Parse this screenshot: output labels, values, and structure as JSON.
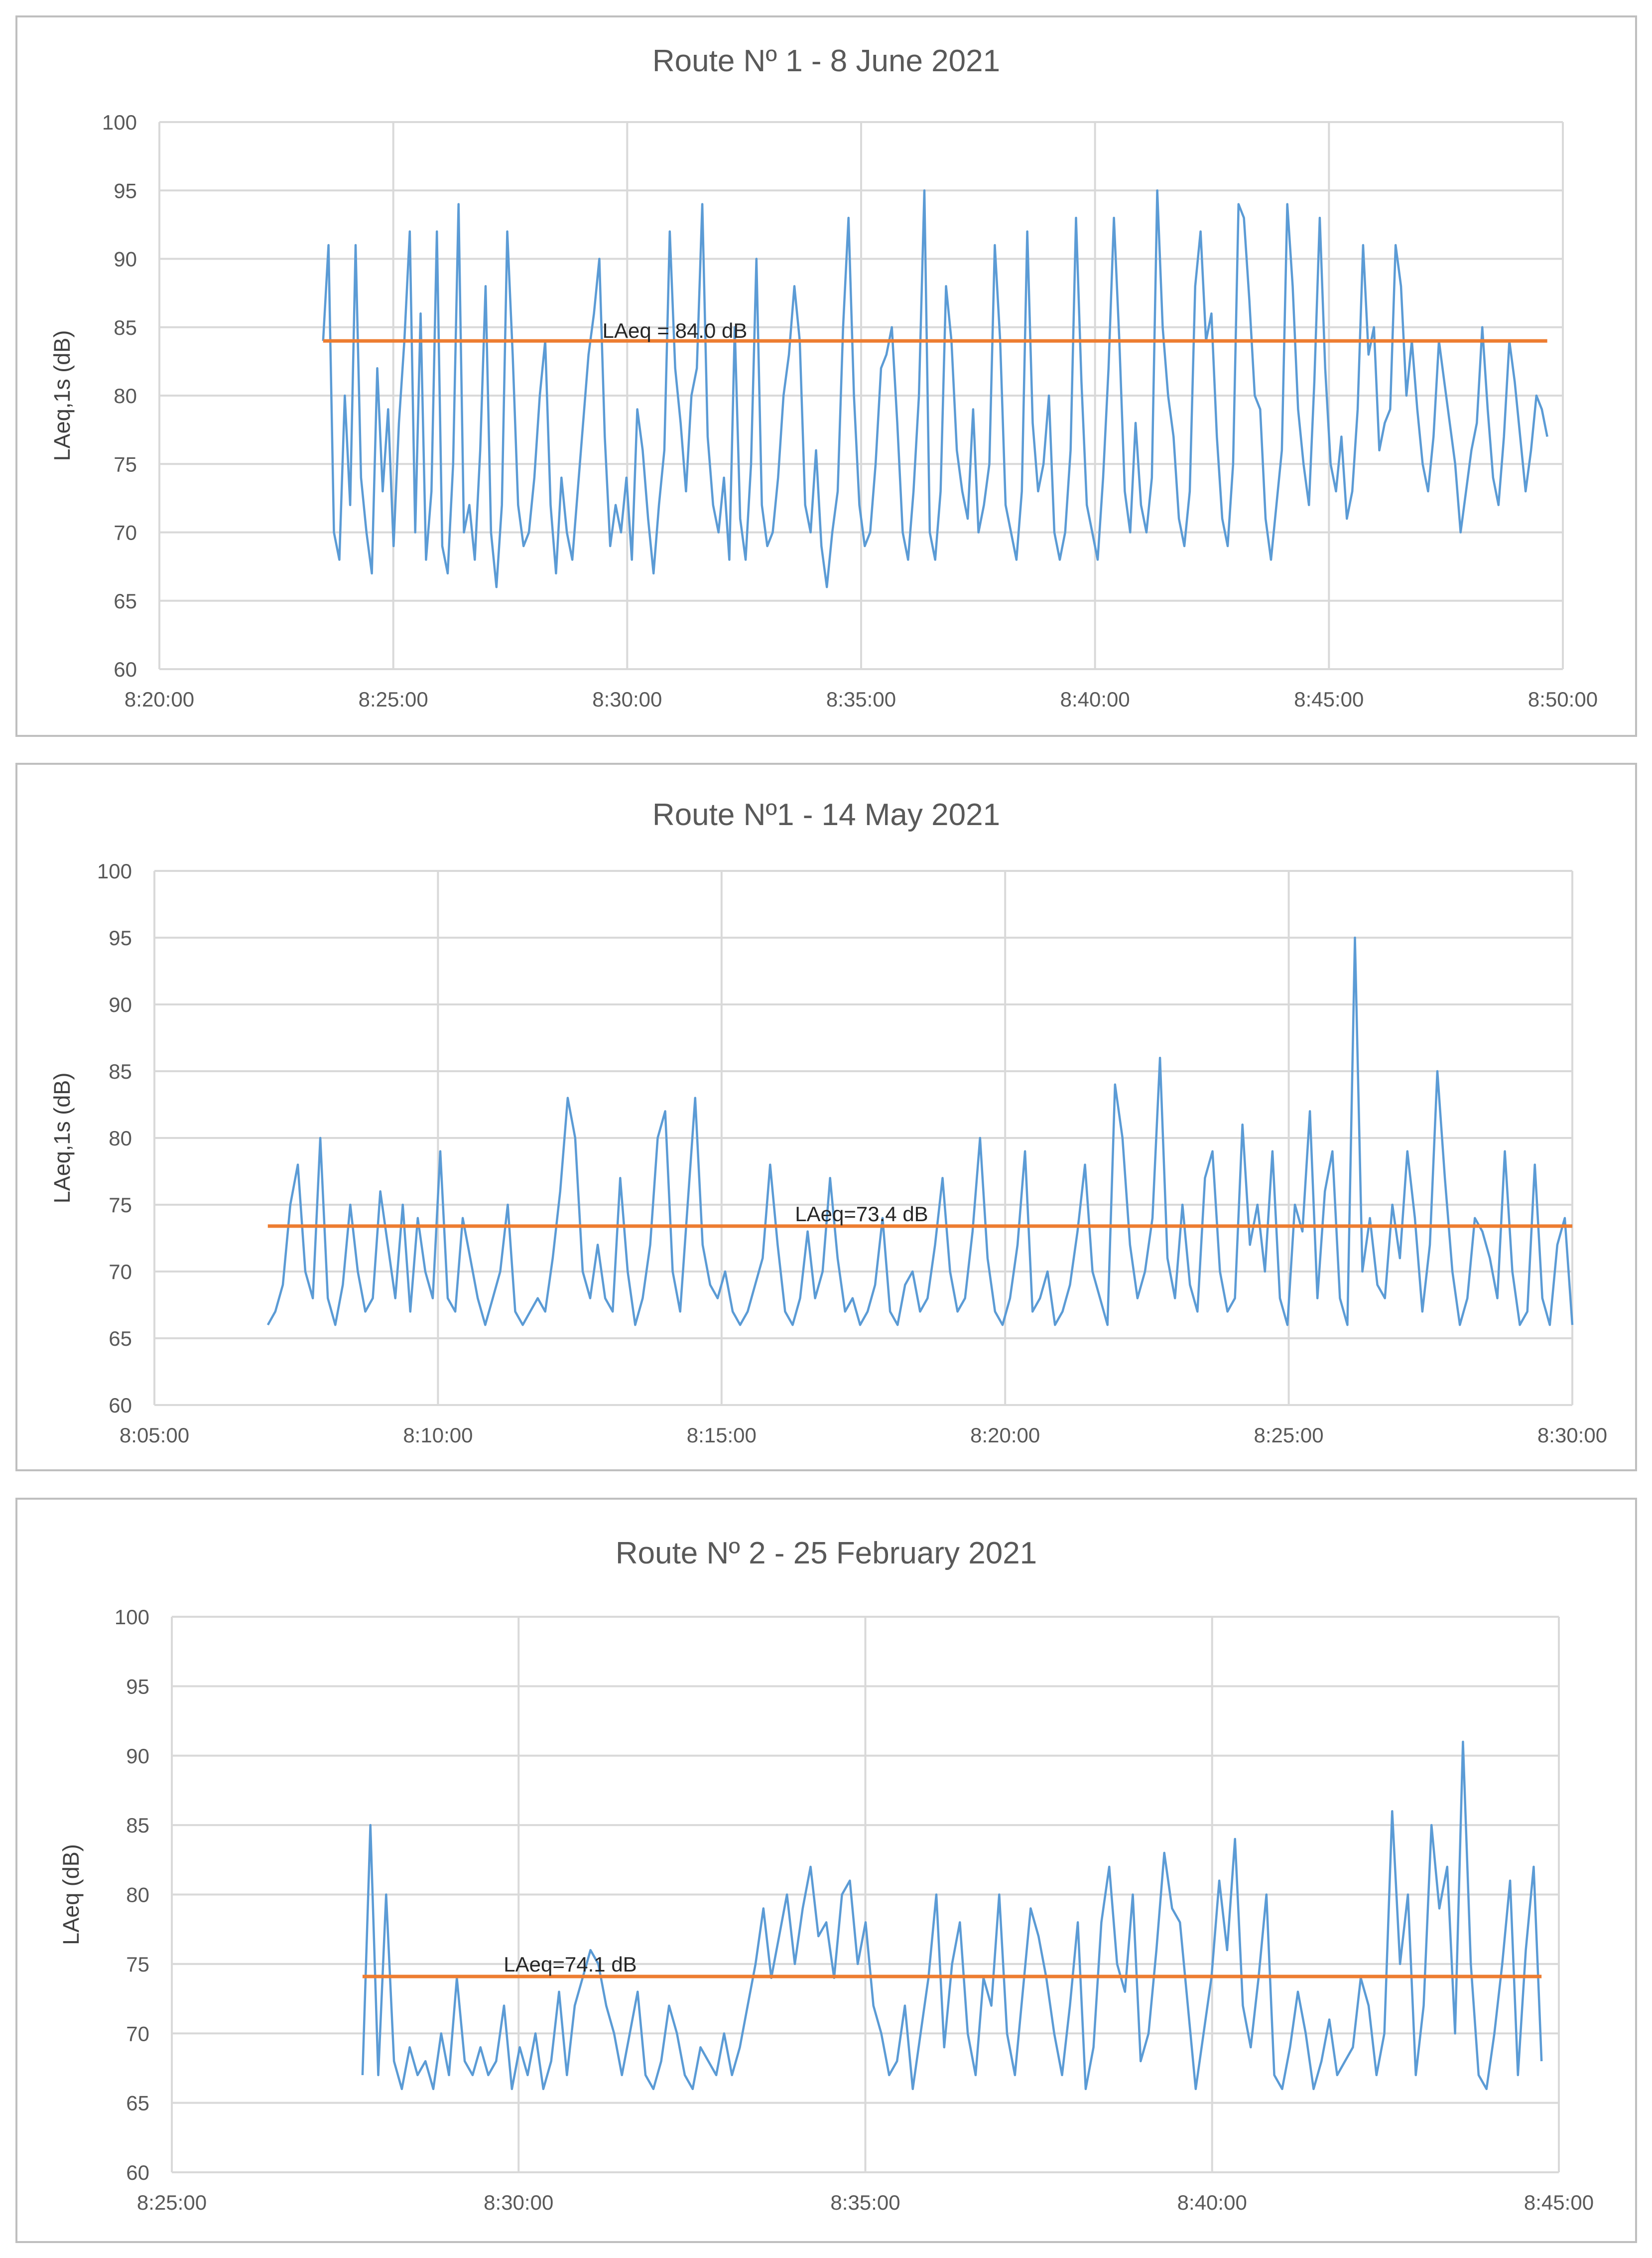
{
  "chart_data": [
    {
      "type": "line",
      "title": "Route Nº 1 - 8 June 2021",
      "xlabel": "",
      "ylabel": "LAeq,1s (dB)",
      "ylim": [
        60,
        100
      ],
      "yticks": [
        "60",
        "65",
        "70",
        "75",
        "80",
        "85",
        "90",
        "95",
        "100"
      ],
      "xticks": [
        "8:20:00",
        "8:25:00",
        "8:30:00",
        "8:35:00",
        "8:40:00",
        "8:45:00",
        "8:50:00"
      ],
      "x_range_seconds": [
        30000,
        31800
      ],
      "data_range_seconds": [
        30210,
        31780
      ],
      "series": [
        {
          "name": "LAeq,1s",
          "color": "#5b9bd5",
          "values": [
            84,
            91,
            70,
            68,
            80,
            72,
            91,
            74,
            70,
            67,
            82,
            73,
            79,
            69,
            78,
            84,
            92,
            70,
            86,
            68,
            73,
            92,
            69,
            67,
            75,
            94,
            70,
            72,
            68,
            76,
            88,
            70,
            66,
            72,
            92,
            83,
            72,
            69,
            70,
            74,
            80,
            84,
            72,
            67,
            74,
            70,
            68,
            73,
            78,
            83,
            86,
            90,
            77,
            69,
            72,
            70,
            74,
            68,
            79,
            76,
            71,
            67,
            72,
            76,
            92,
            82,
            78,
            73,
            80,
            82,
            94,
            77,
            72,
            70,
            74,
            68,
            85,
            71,
            68,
            75,
            90,
            72,
            69,
            70,
            74,
            80,
            83,
            88,
            84,
            72,
            70,
            76,
            69,
            66,
            70,
            73,
            85,
            93,
            80,
            72,
            69,
            70,
            75,
            82,
            83,
            85,
            78,
            70,
            68,
            73,
            80,
            95,
            70,
            68,
            73,
            88,
            84,
            76,
            73,
            71,
            79,
            70,
            72,
            75,
            91,
            84,
            72,
            70,
            68,
            73,
            92,
            78,
            73,
            75,
            80,
            70,
            68,
            70,
            76,
            93,
            81,
            72,
            70,
            68,
            74,
            82,
            93,
            84,
            73,
            70,
            78,
            72,
            70,
            74,
            95,
            85,
            80,
            77,
            71,
            69,
            73,
            88,
            92,
            84,
            86,
            77,
            71,
            69,
            75,
            94,
            93,
            87,
            80,
            79,
            71,
            68,
            72,
            76,
            94,
            88,
            79,
            75,
            72,
            81,
            93,
            82,
            75,
            73,
            77,
            71,
            73,
            79,
            91,
            83,
            85,
            76,
            78,
            79,
            91,
            88,
            80,
            84,
            79,
            75,
            73,
            77,
            84,
            81,
            78,
            75,
            70,
            73,
            76,
            78,
            85,
            79,
            74,
            72,
            77,
            84,
            81,
            77,
            73,
            76,
            80,
            79,
            77
          ]
        }
      ],
      "reference_line": {
        "value": 84.0,
        "label": "LAeq = 84.0 dB",
        "color": "#ed7d31"
      }
    },
    {
      "type": "line",
      "title": "Route Nº1 - 14 May 2021",
      "xlabel": "",
      "ylabel": "LAeq,1s (dB)",
      "ylim": [
        60,
        100
      ],
      "yticks": [
        "60",
        "65",
        "70",
        "75",
        "80",
        "85",
        "90",
        "95",
        "100"
      ],
      "xticks": [
        "8:05:00",
        "8:10:00",
        "8:15:00",
        "8:20:00",
        "8:25:00",
        "8:30:00"
      ],
      "x_range_seconds": [
        29100,
        30600
      ],
      "data_range_seconds": [
        29220,
        30600
      ],
      "series": [
        {
          "name": "LAeq,1s",
          "color": "#5b9bd5",
          "values": [
            66,
            67,
            69,
            75,
            78,
            70,
            68,
            80,
            68,
            66,
            69,
            75,
            70,
            67,
            68,
            76,
            72,
            68,
            75,
            67,
            74,
            70,
            68,
            79,
            68,
            67,
            74,
            71,
            68,
            66,
            68,
            70,
            75,
            67,
            66,
            67,
            68,
            67,
            71,
            76,
            83,
            80,
            70,
            68,
            72,
            68,
            67,
            77,
            70,
            66,
            68,
            72,
            80,
            82,
            70,
            67,
            75,
            83,
            72,
            69,
            68,
            70,
            67,
            66,
            67,
            69,
            71,
            78,
            72,
            67,
            66,
            68,
            73,
            68,
            70,
            77,
            71,
            67,
            68,
            66,
            67,
            69,
            74,
            67,
            66,
            69,
            70,
            67,
            68,
            72,
            77,
            70,
            67,
            68,
            73,
            80,
            71,
            67,
            66,
            68,
            72,
            79,
            67,
            68,
            70,
            66,
            67,
            69,
            73,
            78,
            70,
            68,
            66,
            84,
            80,
            72,
            68,
            70,
            74,
            86,
            71,
            68,
            75,
            69,
            67,
            77,
            79,
            70,
            67,
            68,
            81,
            72,
            75,
            70,
            79,
            68,
            66,
            75,
            73,
            82,
            68,
            76,
            79,
            68,
            66,
            95,
            70,
            74,
            69,
            68,
            75,
            71,
            79,
            74,
            67,
            72,
            85,
            77,
            70,
            66,
            68,
            74,
            73,
            71,
            68,
            79,
            70,
            66,
            67,
            78,
            68,
            66,
            72,
            74,
            66
          ]
        }
      ],
      "reference_line": {
        "value": 73.4,
        "label": "LAeq=73.4 dB",
        "color": "#ed7d31"
      }
    },
    {
      "type": "line",
      "title": "Route Nº 2 - 25 February 2021",
      "xlabel": "",
      "ylabel": "LAeq (dB)",
      "ylim": [
        60,
        100
      ],
      "yticks": [
        "60",
        "65",
        "70",
        "75",
        "80",
        "85",
        "90",
        "95",
        "100"
      ],
      "xticks": [
        "8:25:00",
        "8:30:00",
        "8:35:00",
        "8:40:00",
        "8:45:00"
      ],
      "x_range_seconds": [
        30300,
        31500
      ],
      "data_range_seconds": [
        30465,
        31485
      ],
      "series": [
        {
          "name": "LAeq",
          "color": "#5b9bd5",
          "values": [
            67,
            85,
            67,
            80,
            68,
            66,
            69,
            67,
            68,
            66,
            70,
            67,
            74,
            68,
            67,
            69,
            67,
            68,
            72,
            66,
            69,
            67,
            70,
            66,
            68,
            73,
            67,
            72,
            74,
            76,
            75,
            72,
            70,
            67,
            70,
            73,
            67,
            66,
            68,
            72,
            70,
            67,
            66,
            69,
            68,
            67,
            70,
            67,
            69,
            72,
            75,
            79,
            74,
            77,
            80,
            75,
            79,
            82,
            77,
            78,
            74,
            80,
            81,
            75,
            78,
            72,
            70,
            67,
            68,
            72,
            66,
            70,
            74,
            80,
            69,
            75,
            78,
            70,
            67,
            74,
            72,
            80,
            70,
            67,
            73,
            79,
            77,
            74,
            70,
            67,
            72,
            78,
            66,
            69,
            78,
            82,
            75,
            73,
            80,
            68,
            70,
            76,
            83,
            79,
            78,
            72,
            66,
            70,
            74,
            81,
            76,
            84,
            72,
            69,
            74,
            80,
            67,
            66,
            69,
            73,
            70,
            66,
            68,
            71,
            67,
            68,
            69,
            74,
            72,
            67,
            70,
            86,
            75,
            80,
            67,
            72,
            85,
            79,
            82,
            70,
            91,
            75,
            67,
            66,
            70,
            75,
            81,
            67,
            76,
            82,
            68
          ]
        }
      ],
      "reference_line": {
        "value": 74.1,
        "label": "LAeq=74.1 dB",
        "color": "#ed7d31"
      }
    }
  ]
}
